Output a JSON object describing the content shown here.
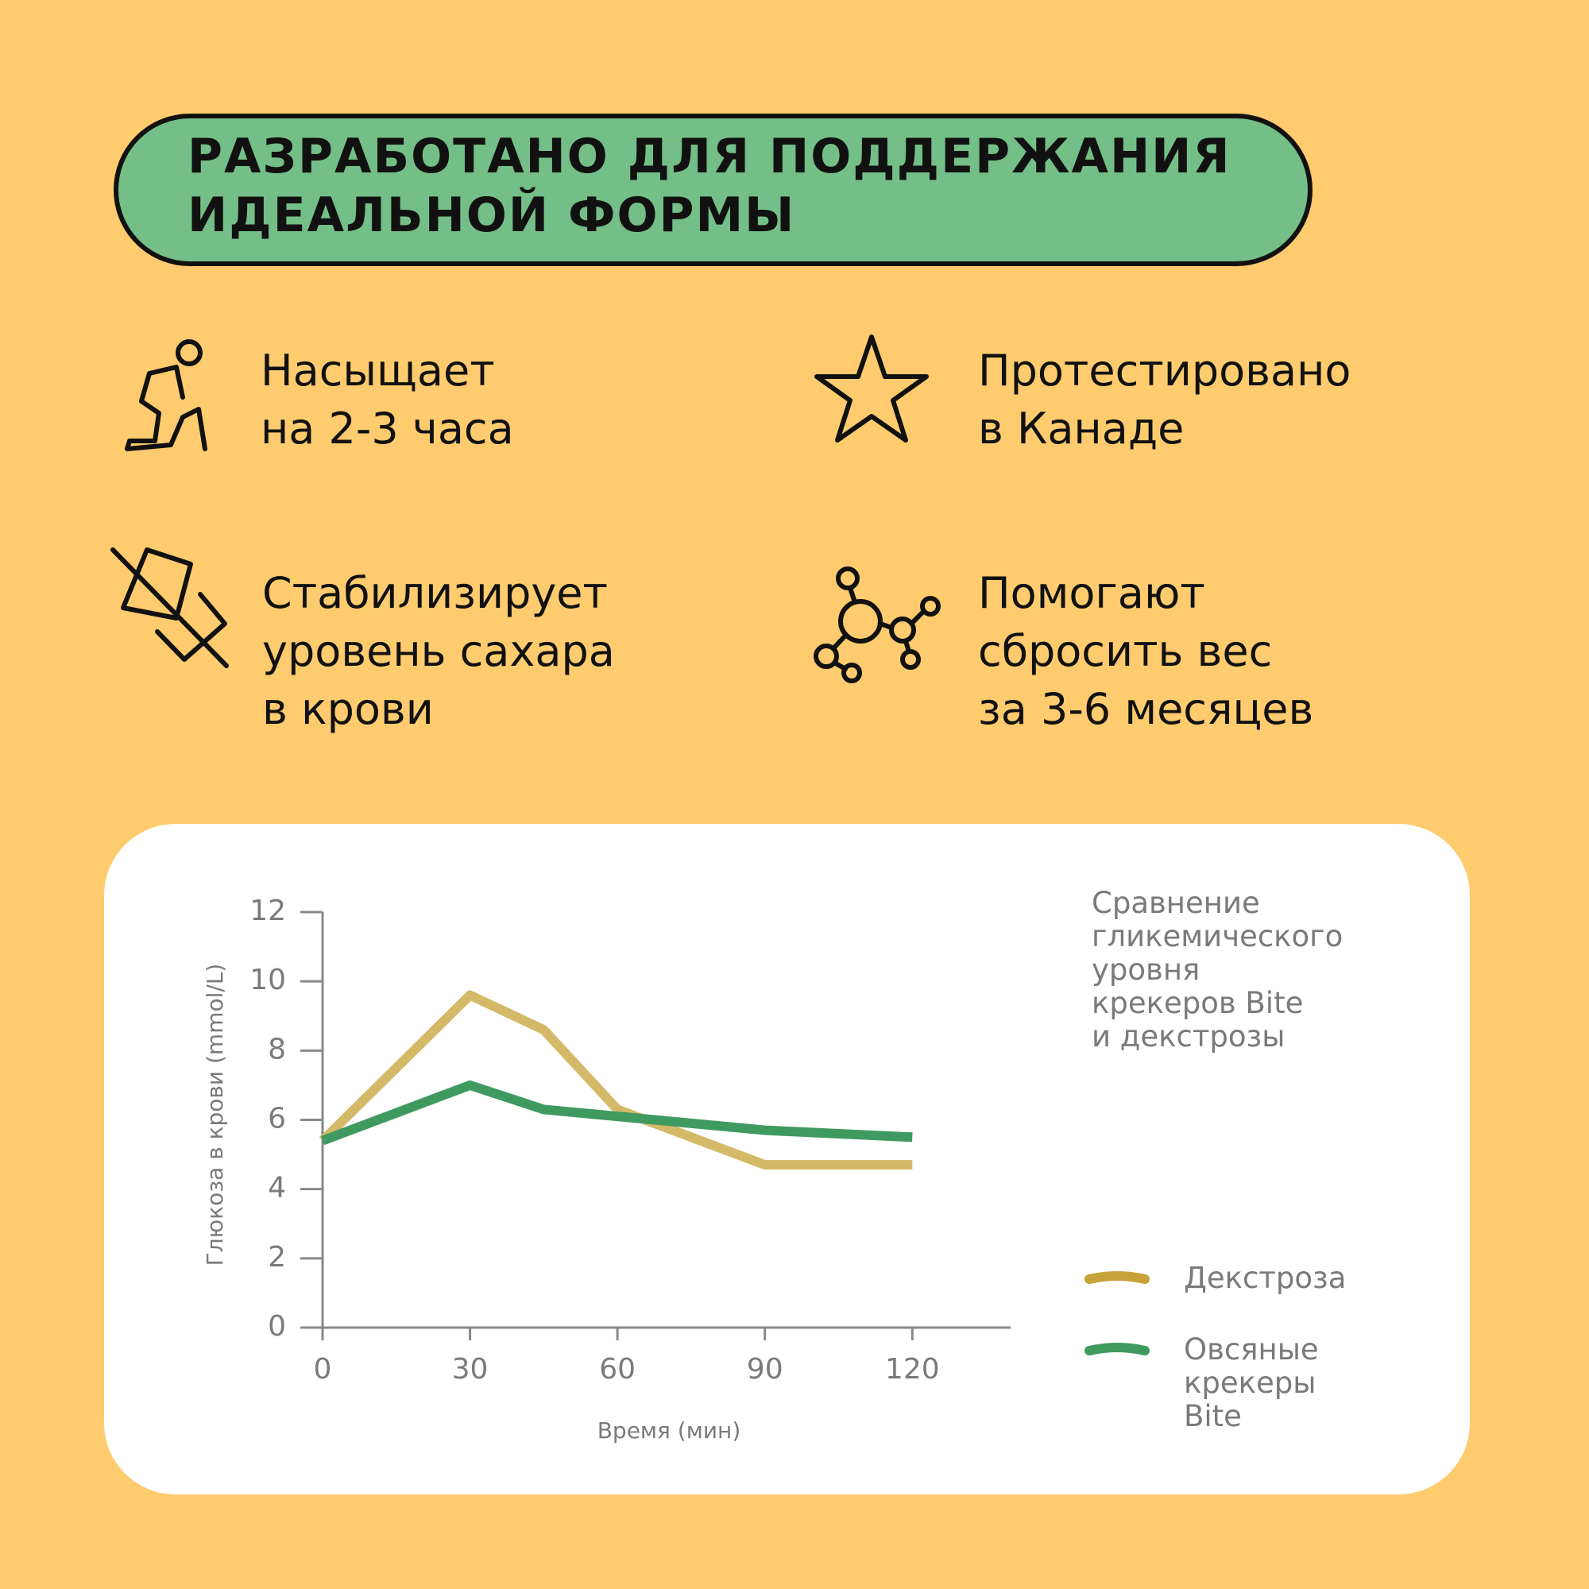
{
  "header": {
    "title": "РАЗРАБОТАНО ДЛЯ ПОДДЕРЖАНИЯ\nИДЕАЛЬНОЙ ФОРМЫ"
  },
  "features": [
    {
      "text": "Насыщает\nна 2-3 часа"
    },
    {
      "text": "Протестировано\nв Канаде"
    },
    {
      "text": "Стабилизирует\nуровень сахара\nв крови"
    },
    {
      "text": "Помогают\nсбросить вес\nза 3-6 месяцев"
    }
  ],
  "chart_data": {
    "type": "line",
    "title": "Сравнение\nгликемического\nуровня\nкрекеров Bite\nи декстрозы",
    "x_label": "Время (мин)",
    "y_label": "Глюкоза в крови (mmol/L)",
    "x": [
      0,
      30,
      45,
      60,
      90,
      120
    ],
    "series": [
      {
        "name": "Декстроза",
        "color": "#d4ba68",
        "legend_color": "#c8a23a",
        "values": [
          5.4,
          9.6,
          8.6,
          6.3,
          4.7,
          4.7
        ]
      },
      {
        "name": "Овсяные\nкрекеры\nBite",
        "color": "#3f9a5f",
        "legend_color": "#3f9a5f",
        "values": [
          5.4,
          7.0,
          6.3,
          6.1,
          5.7,
          5.5
        ]
      }
    ],
    "xlim": [
      0,
      140
    ],
    "xticks": [
      0,
      30,
      60,
      90,
      120
    ],
    "ylim": [
      0,
      12
    ],
    "yticks": [
      0,
      2,
      4,
      6,
      8,
      10,
      12
    ]
  }
}
